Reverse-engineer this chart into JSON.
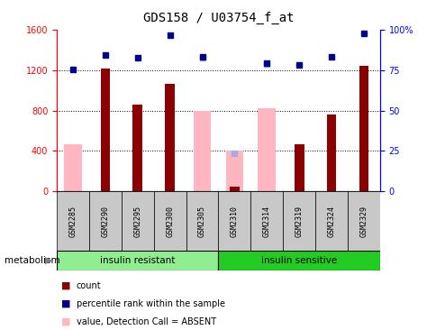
{
  "title": "GDS158 / U03754_f_at",
  "samples": [
    "GSM2285",
    "GSM2290",
    "GSM2295",
    "GSM2300",
    "GSM2305",
    "GSM2310",
    "GSM2314",
    "GSM2319",
    "GSM2324",
    "GSM2329"
  ],
  "n_samples": 10,
  "group1_label": "insulin resistant",
  "group2_label": "insulin sensitive",
  "group1_count": 5,
  "group2_count": 5,
  "metabolism_label": "metabolism",
  "ylim_left": [
    0,
    1600
  ],
  "ylim_right": [
    0,
    100
  ],
  "yticks_left": [
    0,
    400,
    800,
    1200,
    1600
  ],
  "yticks_right": [
    0,
    25,
    50,
    75,
    100
  ],
  "count_values": [
    null,
    1220,
    860,
    1060,
    null,
    50,
    null,
    470,
    760,
    1240
  ],
  "rank_values": [
    1210,
    1350,
    1320,
    1550,
    1330,
    null,
    1270,
    1250,
    1330,
    1560
  ],
  "absent_value_values": [
    470,
    null,
    null,
    null,
    800,
    400,
    820,
    null,
    null,
    null
  ],
  "absent_rank_values": [
    null,
    null,
    null,
    null,
    1320,
    380,
    1260,
    null,
    null,
    null
  ],
  "bar_color_present": "#8B0000",
  "bar_color_absent": "#FFB6C1",
  "dot_color_present": "#00008B",
  "dot_color_absent": "#AAAADD",
  "group1_bg": "#90EE90",
  "group2_bg": "#22CC22",
  "tick_label_bg": "#C8C8C8",
  "title_fontsize": 10,
  "tick_fontsize": 7,
  "legend_fontsize": 7
}
